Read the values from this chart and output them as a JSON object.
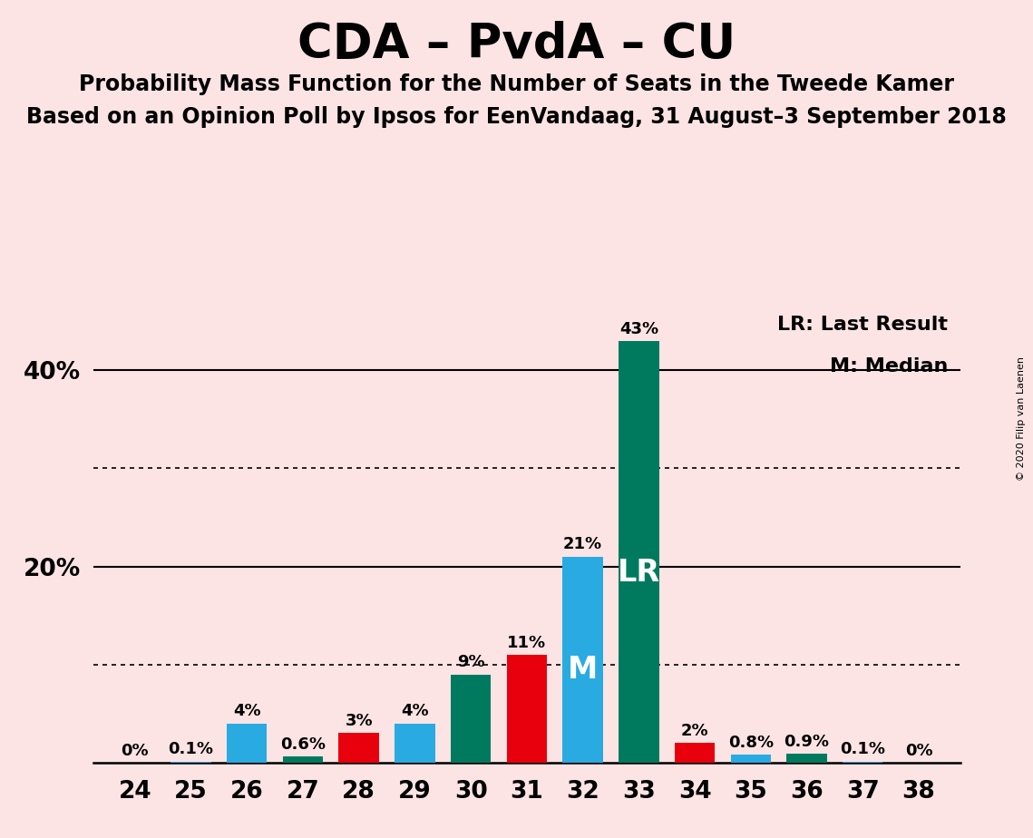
{
  "title": "CDA – PvdA – CU",
  "subtitle1": "Probability Mass Function for the Number of Seats in the Tweede Kamer",
  "subtitle2": "Based on an Opinion Poll by Ipsos for EenVandaag, 31 August–3 September 2018",
  "copyright": "© 2020 Filip van Laenen",
  "seats": [
    24,
    25,
    26,
    27,
    28,
    29,
    30,
    31,
    32,
    33,
    34,
    35,
    36,
    37,
    38
  ],
  "values": [
    0.0,
    0.1,
    4.0,
    0.6,
    3.0,
    4.0,
    9.0,
    11.0,
    21.0,
    43.0,
    2.0,
    0.8,
    0.9,
    0.1,
    0.0
  ],
  "labels": [
    "0%",
    "0.1%",
    "4%",
    "0.6%",
    "3%",
    "4%",
    "9%",
    "11%",
    "21%",
    "43%",
    "2%",
    "0.8%",
    "0.9%",
    "0.1%",
    "0%"
  ],
  "bar_colors": [
    "#29abe2",
    "#29abe2",
    "#29abe2",
    "#007a5e",
    "#e8000d",
    "#29abe2",
    "#007a5e",
    "#e8000d",
    "#29abe2",
    "#007a5e",
    "#e8000d",
    "#29abe2",
    "#007a5e",
    "#29abe2",
    "#007a5e"
  ],
  "lr_seat": 33,
  "median_seat": 32,
  "lr_label": "LR",
  "median_label": "M",
  "legend_lr": "LR: Last Result",
  "legend_m": "M: Median",
  "ylim_max": 47,
  "solid_gridlines": [
    20,
    40
  ],
  "dotted_gridlines": [
    10,
    30
  ],
  "background_color": "#fce4e4",
  "bar_width": 0.72,
  "label_fontsize": 13,
  "tick_fontsize": 19,
  "title_fontsize": 38,
  "subtitle1_fontsize": 17,
  "subtitle2_fontsize": 17,
  "legend_fontsize": 16,
  "lr_m_fontsize": 24,
  "copyright_fontsize": 8,
  "ytick_positions": [
    20,
    40
  ],
  "ytick_labels": [
    "20%",
    "40%"
  ]
}
